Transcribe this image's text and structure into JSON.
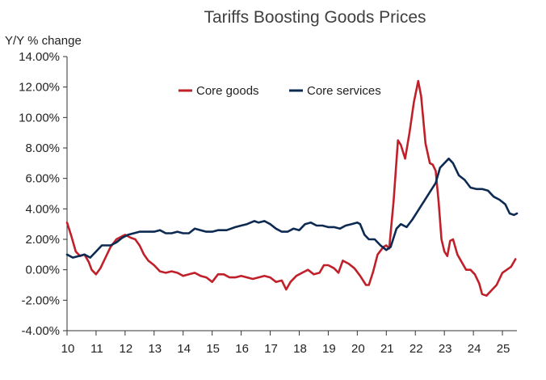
{
  "chart_data": {
    "type": "line",
    "title": "Tariffs Boosting Goods Prices",
    "ylabel": "Y/Y % change",
    "xlabel": "",
    "ylim": [
      -4,
      14
    ],
    "xlim": [
      10,
      25.5
    ],
    "y_ticks": [
      -4,
      -2,
      0,
      2,
      4,
      6,
      8,
      10,
      12,
      14
    ],
    "y_tick_labels": [
      "-4.00%",
      "-2.00%",
      "0.00%",
      "2.00%",
      "4.00%",
      "6.00%",
      "8.00%",
      "10.00%",
      "12.00%",
      "14.00%"
    ],
    "x_ticks": [
      10,
      11,
      12,
      13,
      14,
      15,
      16,
      17,
      18,
      19,
      20,
      21,
      22,
      23,
      24,
      25
    ],
    "x_tick_labels": [
      "10",
      "11",
      "12",
      "13",
      "14",
      "15",
      "16",
      "17",
      "18",
      "19",
      "20",
      "21",
      "22",
      "23",
      "24",
      "25"
    ],
    "grid": false,
    "legend_position": "top-center",
    "series": [
      {
        "name": "Core goods",
        "color": "#c0202a",
        "points": [
          [
            10.0,
            3.1
          ],
          [
            10.15,
            2.2
          ],
          [
            10.3,
            1.2
          ],
          [
            10.45,
            0.9
          ],
          [
            10.6,
            1.0
          ],
          [
            10.75,
            0.5
          ],
          [
            10.85,
            0.0
          ],
          [
            11.0,
            -0.3
          ],
          [
            11.15,
            0.1
          ],
          [
            11.3,
            0.7
          ],
          [
            11.5,
            1.5
          ],
          [
            11.7,
            2.0
          ],
          [
            11.9,
            2.2
          ],
          [
            12.0,
            2.3
          ],
          [
            12.2,
            2.1
          ],
          [
            12.35,
            2.0
          ],
          [
            12.5,
            1.6
          ],
          [
            12.65,
            1.0
          ],
          [
            12.8,
            0.6
          ],
          [
            13.0,
            0.3
          ],
          [
            13.2,
            -0.1
          ],
          [
            13.4,
            -0.2
          ],
          [
            13.6,
            -0.1
          ],
          [
            13.8,
            -0.2
          ],
          [
            14.0,
            -0.4
          ],
          [
            14.2,
            -0.3
          ],
          [
            14.4,
            -0.2
          ],
          [
            14.6,
            -0.4
          ],
          [
            14.8,
            -0.5
          ],
          [
            15.0,
            -0.8
          ],
          [
            15.2,
            -0.3
          ],
          [
            15.4,
            -0.3
          ],
          [
            15.6,
            -0.5
          ],
          [
            15.8,
            -0.5
          ],
          [
            16.0,
            -0.4
          ],
          [
            16.2,
            -0.5
          ],
          [
            16.4,
            -0.6
          ],
          [
            16.6,
            -0.5
          ],
          [
            16.8,
            -0.4
          ],
          [
            17.0,
            -0.5
          ],
          [
            17.2,
            -0.8
          ],
          [
            17.4,
            -0.7
          ],
          [
            17.55,
            -1.3
          ],
          [
            17.7,
            -0.8
          ],
          [
            17.9,
            -0.4
          ],
          [
            18.1,
            -0.2
          ],
          [
            18.3,
            0.0
          ],
          [
            18.5,
            -0.3
          ],
          [
            18.7,
            -0.2
          ],
          [
            18.85,
            0.3
          ],
          [
            19.0,
            0.3
          ],
          [
            19.2,
            0.1
          ],
          [
            19.35,
            -0.2
          ],
          [
            19.5,
            0.6
          ],
          [
            19.7,
            0.4
          ],
          [
            19.9,
            0.1
          ],
          [
            20.1,
            -0.4
          ],
          [
            20.3,
            -1.0
          ],
          [
            20.4,
            -1.0
          ],
          [
            20.55,
            -0.1
          ],
          [
            20.7,
            1.0
          ],
          [
            20.9,
            1.5
          ],
          [
            21.0,
            1.6
          ],
          [
            21.1,
            1.4
          ],
          [
            21.25,
            4.5
          ],
          [
            21.4,
            8.5
          ],
          [
            21.5,
            8.2
          ],
          [
            21.65,
            7.3
          ],
          [
            21.8,
            9.0
          ],
          [
            21.95,
            11.0
          ],
          [
            22.1,
            12.4
          ],
          [
            22.2,
            11.4
          ],
          [
            22.35,
            8.3
          ],
          [
            22.5,
            7.0
          ],
          [
            22.6,
            6.9
          ],
          [
            22.7,
            6.5
          ],
          [
            22.8,
            4.5
          ],
          [
            22.9,
            2.0
          ],
          [
            23.0,
            1.2
          ],
          [
            23.1,
            0.9
          ],
          [
            23.2,
            1.9
          ],
          [
            23.3,
            2.0
          ],
          [
            23.45,
            1.0
          ],
          [
            23.6,
            0.5
          ],
          [
            23.75,
            0.0
          ],
          [
            23.9,
            0.0
          ],
          [
            24.05,
            -0.3
          ],
          [
            24.2,
            -0.9
          ],
          [
            24.3,
            -1.6
          ],
          [
            24.45,
            -1.7
          ],
          [
            24.6,
            -1.4
          ],
          [
            24.8,
            -1.0
          ],
          [
            25.0,
            -0.2
          ],
          [
            25.15,
            0.0
          ],
          [
            25.3,
            0.2
          ],
          [
            25.45,
            0.7
          ]
        ]
      },
      {
        "name": "Core services",
        "color": "#0d2a52",
        "points": [
          [
            10.0,
            1.0
          ],
          [
            10.2,
            0.8
          ],
          [
            10.4,
            0.9
          ],
          [
            10.6,
            1.0
          ],
          [
            10.8,
            0.8
          ],
          [
            11.0,
            1.2
          ],
          [
            11.2,
            1.6
          ],
          [
            11.5,
            1.6
          ],
          [
            11.7,
            1.8
          ],
          [
            11.9,
            2.1
          ],
          [
            12.1,
            2.3
          ],
          [
            12.3,
            2.4
          ],
          [
            12.5,
            2.5
          ],
          [
            12.8,
            2.5
          ],
          [
            13.0,
            2.5
          ],
          [
            13.2,
            2.6
          ],
          [
            13.4,
            2.4
          ],
          [
            13.6,
            2.4
          ],
          [
            13.8,
            2.5
          ],
          [
            14.0,
            2.4
          ],
          [
            14.2,
            2.4
          ],
          [
            14.4,
            2.7
          ],
          [
            14.6,
            2.6
          ],
          [
            14.8,
            2.5
          ],
          [
            15.0,
            2.5
          ],
          [
            15.2,
            2.6
          ],
          [
            15.5,
            2.6
          ],
          [
            15.8,
            2.8
          ],
          [
            16.0,
            2.9
          ],
          [
            16.2,
            3.0
          ],
          [
            16.45,
            3.2
          ],
          [
            16.6,
            3.1
          ],
          [
            16.8,
            3.2
          ],
          [
            17.0,
            3.0
          ],
          [
            17.2,
            2.7
          ],
          [
            17.4,
            2.5
          ],
          [
            17.6,
            2.5
          ],
          [
            17.8,
            2.7
          ],
          [
            18.0,
            2.6
          ],
          [
            18.2,
            3.0
          ],
          [
            18.4,
            3.1
          ],
          [
            18.6,
            2.9
          ],
          [
            18.8,
            2.9
          ],
          [
            19.0,
            2.8
          ],
          [
            19.2,
            2.8
          ],
          [
            19.4,
            2.7
          ],
          [
            19.6,
            2.9
          ],
          [
            19.8,
            3.0
          ],
          [
            20.0,
            3.1
          ],
          [
            20.1,
            3.0
          ],
          [
            20.25,
            2.3
          ],
          [
            20.4,
            2.0
          ],
          [
            20.6,
            2.0
          ],
          [
            20.8,
            1.6
          ],
          [
            21.0,
            1.3
          ],
          [
            21.15,
            1.5
          ],
          [
            21.35,
            2.7
          ],
          [
            21.5,
            3.0
          ],
          [
            21.7,
            2.8
          ],
          [
            21.9,
            3.3
          ],
          [
            22.1,
            3.9
          ],
          [
            22.3,
            4.5
          ],
          [
            22.5,
            5.1
          ],
          [
            22.7,
            5.7
          ],
          [
            22.85,
            6.7
          ],
          [
            23.0,
            7.0
          ],
          [
            23.15,
            7.3
          ],
          [
            23.3,
            7.0
          ],
          [
            23.5,
            6.2
          ],
          [
            23.7,
            5.9
          ],
          [
            23.9,
            5.4
          ],
          [
            24.1,
            5.3
          ],
          [
            24.3,
            5.3
          ],
          [
            24.5,
            5.2
          ],
          [
            24.7,
            4.8
          ],
          [
            24.9,
            4.6
          ],
          [
            25.1,
            4.3
          ],
          [
            25.25,
            3.7
          ],
          [
            25.4,
            3.6
          ],
          [
            25.5,
            3.7
          ]
        ]
      }
    ]
  }
}
